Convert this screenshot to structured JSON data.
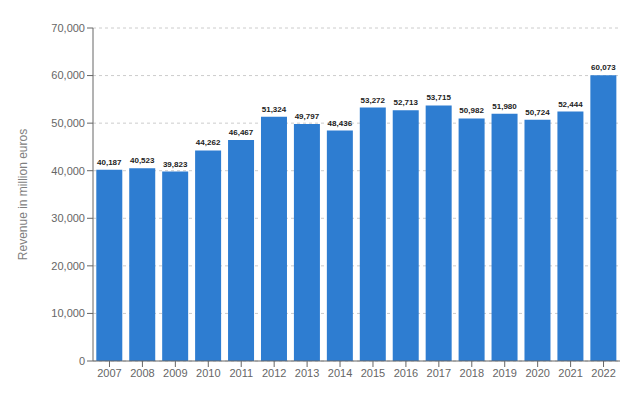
{
  "chart_data": {
    "type": "bar",
    "ylabel": "Revenue in million euros",
    "categories": [
      "2007",
      "2008",
      "2009",
      "2010",
      "2011",
      "2012",
      "2013",
      "2014",
      "2015",
      "2016",
      "2017",
      "2018",
      "2019",
      "2020",
      "2021",
      "2022"
    ],
    "values": [
      40187,
      40523,
      39823,
      44262,
      46467,
      51324,
      49797,
      48436,
      53272,
      52713,
      53715,
      50982,
      51980,
      50724,
      52444,
      60073
    ],
    "value_labels": [
      "40,187",
      "40,523",
      "39,823",
      "44,262",
      "46,467",
      "51,324",
      "49,797",
      "48,436",
      "53,272",
      "52,713",
      "53,715",
      "50,982",
      "51,980",
      "50,724",
      "52,444",
      "60,073"
    ],
    "data_labels": true,
    "color": "#2e7dd1",
    "ylim": [
      0,
      70000
    ],
    "yticks": [
      0,
      {
        "value": 10000,
        "label": "10,000"
      },
      {
        "value": 20000,
        "label": "20,000"
      },
      {
        "value": 30000,
        "label": "30,000"
      },
      {
        "value": 40000,
        "label": "40,000"
      },
      {
        "value": 50000,
        "label": "50,000"
      },
      {
        "value": 60000,
        "label": "60,000"
      },
      {
        "value": 70000,
        "label": "70,000"
      }
    ],
    "grid": true
  }
}
